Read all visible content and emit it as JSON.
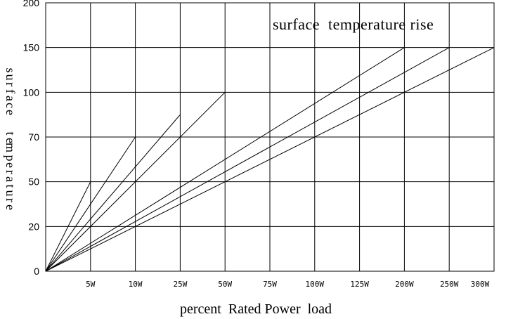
{
  "chart_data": {
    "type": "line",
    "title": "surface  temperature rise",
    "xlabel": "percent  Rated Power  load",
    "ylabel": "surface  temperature",
    "categories": [
      "5W",
      "10W",
      "25W",
      "50W",
      "75W",
      "100W",
      "125W",
      "200W",
      "250W",
      "300W"
    ],
    "y_ticks": [
      "0",
      "20",
      "50",
      "70",
      "100",
      "150",
      "200"
    ],
    "grid": true,
    "series": [
      {
        "values": [
          50,
          null,
          null,
          null,
          null,
          null,
          null,
          null,
          null,
          null
        ]
      },
      {
        "values": [
          null,
          70,
          null,
          null,
          null,
          null,
          null,
          null,
          null,
          null
        ]
      },
      {
        "values": [
          null,
          null,
          85,
          null,
          null,
          null,
          null,
          null,
          null,
          null
        ]
      },
      {
        "values": [
          null,
          null,
          null,
          100,
          null,
          null,
          null,
          null,
          null,
          null
        ]
      },
      {
        "values": [
          null,
          null,
          null,
          null,
          null,
          null,
          null,
          150,
          null,
          null
        ]
      },
      {
        "values": [
          null,
          null,
          null,
          null,
          null,
          null,
          null,
          null,
          150,
          null
        ]
      },
      {
        "values": [
          null,
          null,
          null,
          null,
          null,
          null,
          null,
          null,
          null,
          150
        ]
      }
    ]
  }
}
